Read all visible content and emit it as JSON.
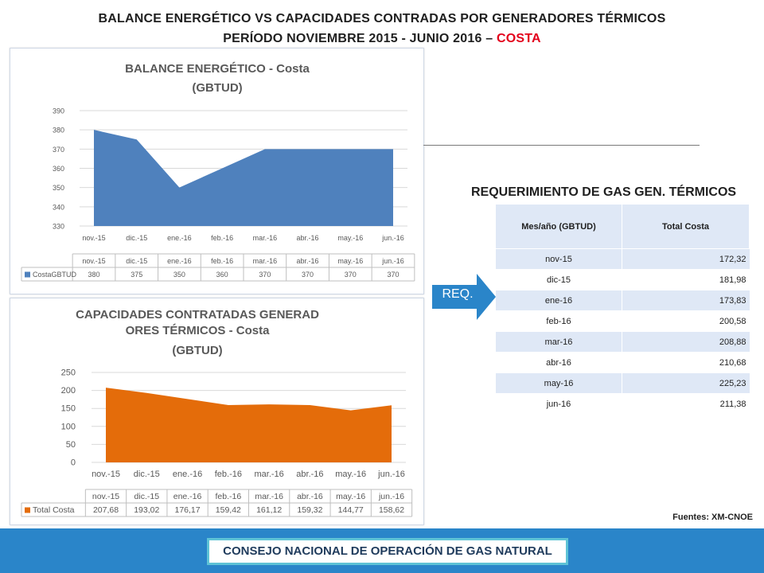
{
  "header": {
    "line1": "BALANCE ENERGÉTICO VS CAPACIDADES CONTRADAS POR GENERADORES TÉRMICOS",
    "line2_prefix": "PERÍODO NOVIEMBRE 2015 - JUNIO 2016 – ",
    "line2_accent": "COSTA"
  },
  "colors": {
    "accent_red": "#e3001b",
    "balance_fill": "#4f81bd",
    "capacity_fill": "#e46c0a",
    "arrow": "#2a85c9",
    "footer_bg": "#2a85c9",
    "footer_border": "#5ec3d6"
  },
  "arrow_label": "REQ.",
  "requirement": {
    "title": "REQUERIMIENTO  DE GAS GEN. TÉRMICOS",
    "headers": [
      "Mes/año (GBTUD)",
      "Total Costa"
    ],
    "rows": [
      [
        "nov-15",
        "172,32"
      ],
      [
        "dic-15",
        "181,98"
      ],
      [
        "ene-16",
        "173,83"
      ],
      [
        "feb-16",
        "200,58"
      ],
      [
        "mar-16",
        "208,88"
      ],
      [
        "abr-16",
        "210,68"
      ],
      [
        "may-16",
        "225,23"
      ],
      [
        "jun-16",
        "211,38"
      ]
    ]
  },
  "source": "Fuentes: XM-CNOE",
  "footer": "CONSEJO NACIONAL DE OPERACIÓN DE GAS NATURAL",
  "chart_data": [
    {
      "type": "area",
      "title": "BALANCE ENERGÉTICO - Costa",
      "subtitle": "(GBTUD)",
      "categories": [
        "nov.-15",
        "dic.-15",
        "ene.-16",
        "feb.-16",
        "mar.-16",
        "abr.-16",
        "may.-16",
        "jun.-16"
      ],
      "series": [
        {
          "name": "CostaGBTUD",
          "values": [
            380,
            375,
            350,
            360,
            370,
            370,
            370,
            370
          ],
          "labels": [
            "380",
            "375",
            "350",
            "360",
            "370",
            "370",
            "370",
            "370"
          ]
        }
      ],
      "ylim": [
        330,
        390
      ],
      "yticks": [
        330,
        340,
        350,
        360,
        370,
        380,
        390
      ],
      "grid": true,
      "legend": "data-table"
    },
    {
      "type": "area",
      "title": "CAPACIDADES CONTRATADAS GENERADORES TÉRMICOS - Costa",
      "subtitle": "(GBTUD)",
      "categories": [
        "nov.-15",
        "dic.-15",
        "ene.-16",
        "feb.-16",
        "mar.-16",
        "abr.-16",
        "may.-16",
        "jun.-16"
      ],
      "series": [
        {
          "name": "Total Costa",
          "values": [
            207.68,
            193.02,
            176.17,
            159.42,
            161.12,
            159.32,
            144.77,
            158.62
          ],
          "labels": [
            "207,68",
            "193,02",
            "176,17",
            "159,42",
            "161,12",
            "159,32",
            "144,77",
            "158,62"
          ]
        }
      ],
      "ylim": [
        0,
        250
      ],
      "yticks": [
        0,
        50,
        100,
        150,
        200,
        250
      ],
      "grid": true,
      "legend": "data-table"
    }
  ]
}
